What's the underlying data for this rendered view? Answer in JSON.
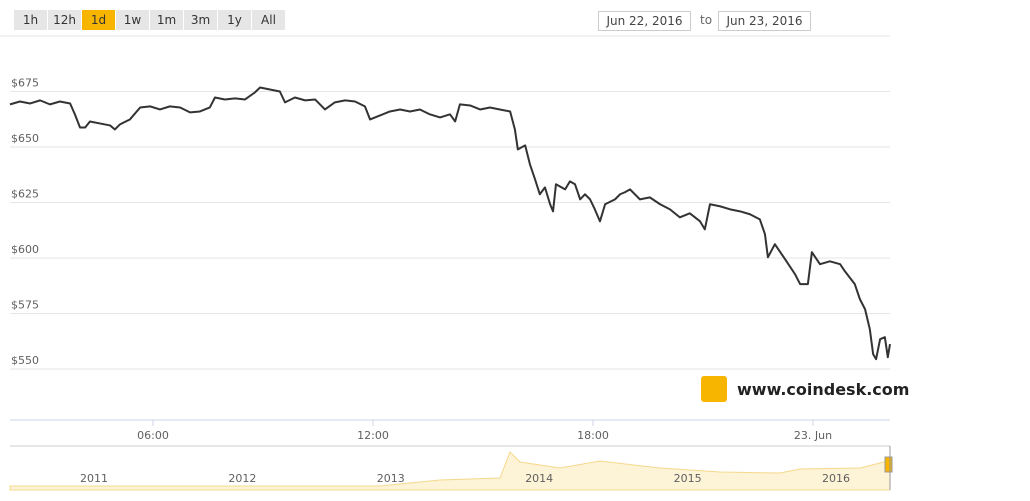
{
  "range_selector": {
    "buttons": [
      "1h",
      "12h",
      "1d",
      "1w",
      "1m",
      "3m",
      "1y",
      "All"
    ],
    "selected_index": 2
  },
  "date_range": {
    "from": "Jun 22, 2016",
    "separator": "to",
    "to": "Jun 23, 2016"
  },
  "watermark": "www.coindesk.com",
  "chart_data": {
    "type": "line",
    "color": "#333333",
    "grid": true,
    "x": [
      2.1,
      2.37,
      2.65,
      2.92,
      3.19,
      3.46,
      3.74,
      3.87,
      4.01,
      4.15,
      4.28,
      4.55,
      4.83,
      4.96,
      5.1,
      5.37,
      5.65,
      5.92,
      6.19,
      6.46,
      6.74,
      7.01,
      7.28,
      7.55,
      7.69,
      7.96,
      8.24,
      8.51,
      8.78,
      8.92,
      9.19,
      9.46,
      9.6,
      9.87,
      10.15,
      10.42,
      10.69,
      10.96,
      11.24,
      11.51,
      11.78,
      11.92,
      12.19,
      12.46,
      12.74,
      13.01,
      13.28,
      13.55,
      13.83,
      14.1,
      14.24,
      14.37,
      14.65,
      14.92,
      15.19,
      15.46,
      15.74,
      15.87,
      15.95,
      16.15,
      16.28,
      16.42,
      16.55,
      16.69,
      16.83,
      16.91,
      16.99,
      17.24,
      17.37,
      17.51,
      17.65,
      17.78,
      17.92,
      18.05,
      18.19,
      18.33,
      18.6,
      18.74,
      18.87,
      19.01,
      19.28,
      19.55,
      19.83,
      20.1,
      20.37,
      20.64,
      20.92,
      21.05,
      21.19,
      21.46,
      21.74,
      22.01,
      22.28,
      22.55,
      22.69,
      22.77,
      22.96,
      23.24,
      23.51,
      23.65,
      23.86,
      23.97,
      24.19,
      24.46,
      24.74,
      24.87,
      25.14,
      25.28,
      25.42,
      25.55,
      25.64,
      25.72,
      25.83,
      25.96,
      26.04,
      26.1
    ],
    "values": [
      669.2,
      670.5,
      669.6,
      671.0,
      669.2,
      670.5,
      669.6,
      664.7,
      658.8,
      658.8,
      661.5,
      660.6,
      659.7,
      657.9,
      660.2,
      662.4,
      667.8,
      668.3,
      666.9,
      668.3,
      667.8,
      665.6,
      666.0,
      667.8,
      672.3,
      671.4,
      671.9,
      671.4,
      674.6,
      676.8,
      675.9,
      675.0,
      670.1,
      672.3,
      671.0,
      671.4,
      666.9,
      670.1,
      671.0,
      670.5,
      668.3,
      662.4,
      664.2,
      666.0,
      666.9,
      666.0,
      666.9,
      664.7,
      663.3,
      664.7,
      661.5,
      669.2,
      668.7,
      666.9,
      667.8,
      666.9,
      666.0,
      657.9,
      648.9,
      650.7,
      642.2,
      635.4,
      628.7,
      631.8,
      624.2,
      621.0,
      633.2,
      630.9,
      634.5,
      633.2,
      626.4,
      628.7,
      626.4,
      621.9,
      616.5,
      624.2,
      626.4,
      628.7,
      629.6,
      630.9,
      626.4,
      627.3,
      624.2,
      621.9,
      618.3,
      620.1,
      616.5,
      612.9,
      624.2,
      623.3,
      621.9,
      621.0,
      619.7,
      617.4,
      610.7,
      600.3,
      606.2,
      599.4,
      592.7,
      588.2,
      588.2,
      602.6,
      597.2,
      598.5,
      597.2,
      594.0,
      588.2,
      581.4,
      576.9,
      567.9,
      556.7,
      554.4,
      563.4,
      564.3,
      555.3,
      561.2
    ],
    "xlim": [
      2.1,
      26.1
    ],
    "xticks": [
      {
        "value": 6,
        "label": "06:00"
      },
      {
        "value": 12,
        "label": "12:00"
      },
      {
        "value": 18,
        "label": "18:00"
      },
      {
        "value": 24,
        "label": "23. Jun"
      }
    ],
    "ylim": [
      527,
      700
    ],
    "yticks": [
      {
        "value": 550,
        "label": "$550"
      },
      {
        "value": 575,
        "label": "$575"
      },
      {
        "value": 600,
        "label": "$600"
      },
      {
        "value": 625,
        "label": "$625"
      },
      {
        "value": 650,
        "label": "$650"
      },
      {
        "value": 675,
        "label": "$675"
      }
    ]
  },
  "navigator": {
    "labels": [
      "2011",
      "2012",
      "2013",
      "2014",
      "2015",
      "2016"
    ]
  }
}
